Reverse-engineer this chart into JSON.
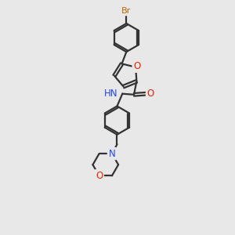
{
  "bg_color": "#e8e8e8",
  "bond_color": "#333333",
  "bond_width": 1.6,
  "O_color": "#ee2200",
  "N_color": "#2244ff",
  "Br_color": "#bb6600",
  "font_size": 8.5,
  "font_size_br": 8.0,
  "canvas_xlim": [
    0,
    10
  ],
  "canvas_ylim": [
    0,
    13
  ]
}
